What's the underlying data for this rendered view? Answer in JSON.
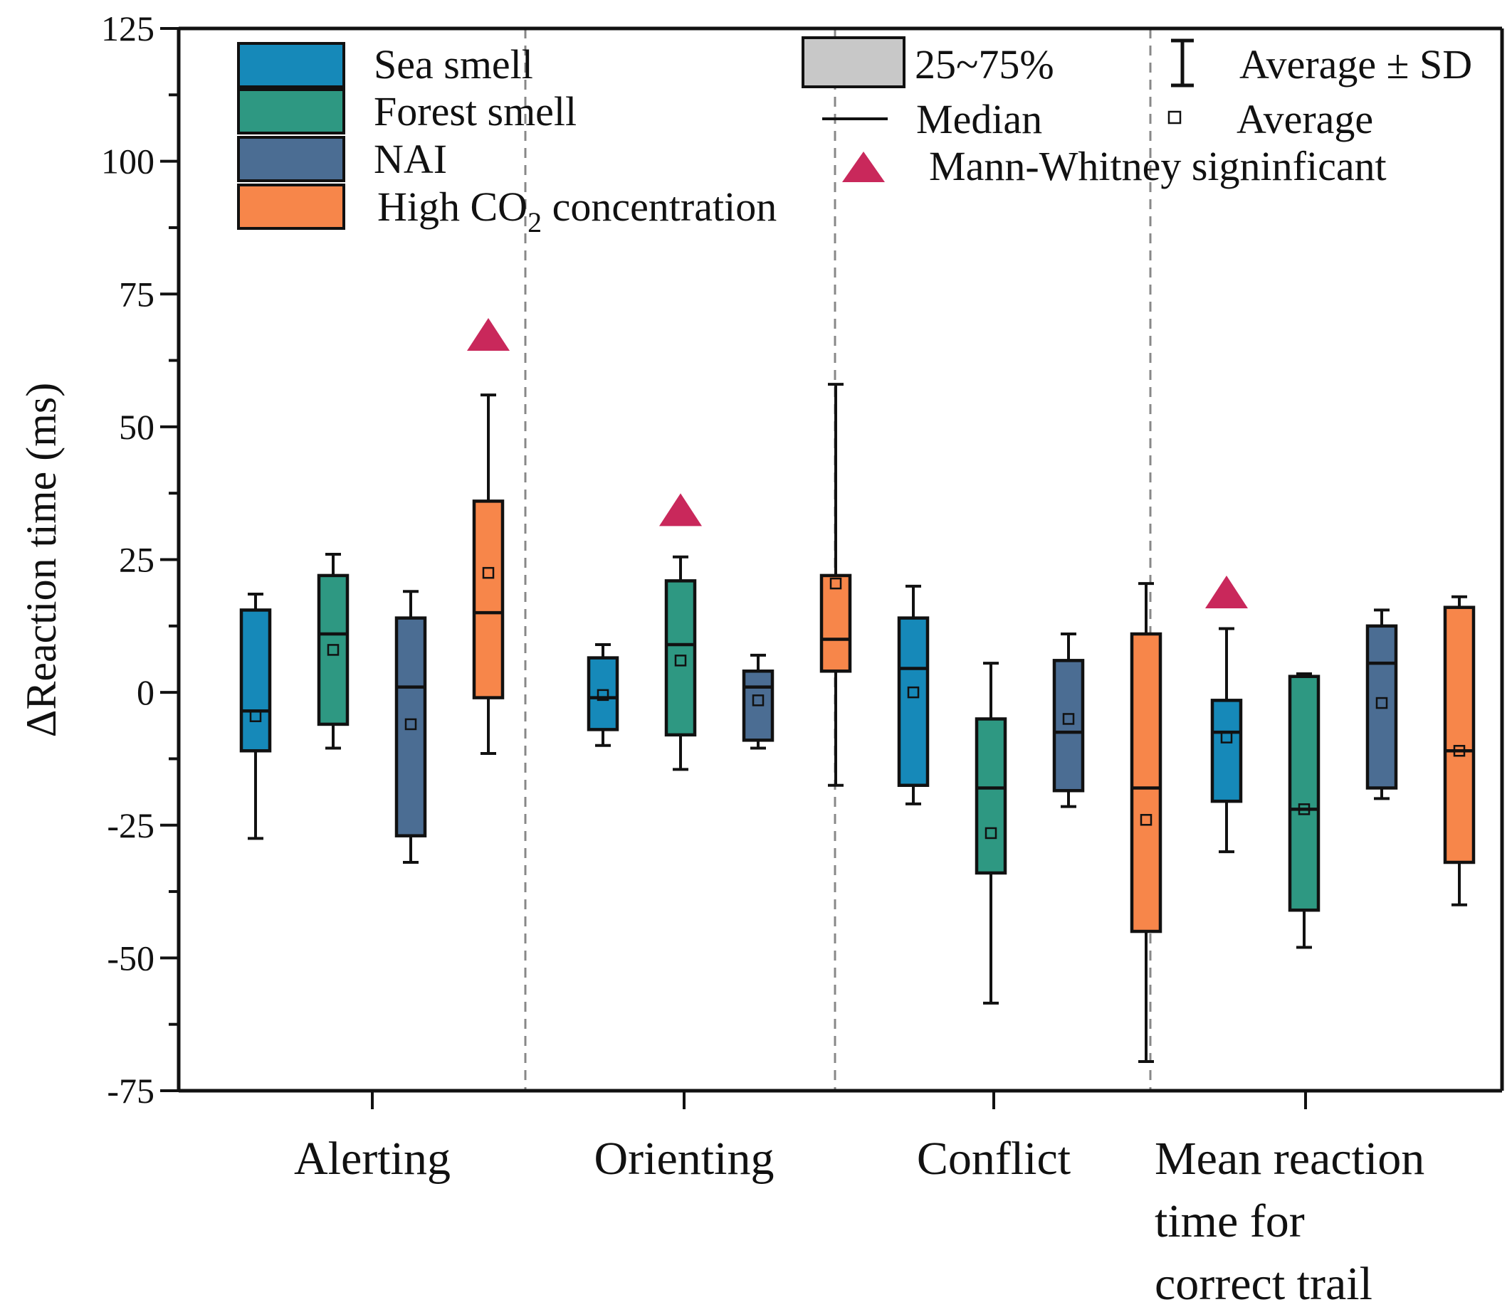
{
  "colors": {
    "sea": "#1689b9",
    "forest": "#2e9882",
    "nai": "#4b6d93",
    "co2": "#f7864a",
    "significant": "#c9285b",
    "iqr_swatch": "#c8c8c8"
  },
  "chart_data": {
    "type": "box",
    "ylabel": "ΔReaction time (ms)",
    "ylim": [
      -75,
      125
    ],
    "yticks": [
      -75,
      -50,
      -25,
      0,
      25,
      50,
      75,
      100,
      125
    ],
    "categories": [
      {
        "label_lines": [
          "Alerting"
        ]
      },
      {
        "label_lines": [
          "Orienting"
        ]
      },
      {
        "label_lines": [
          "Conflict"
        ]
      },
      {
        "label_lines": [
          "Mean reaction",
          "time for",
          "correct trail"
        ]
      }
    ],
    "series": [
      {
        "name": "Sea smell",
        "color_key": "sea",
        "boxes": [
          {
            "whisker_low": -27.5,
            "q1": -11,
            "median": -3.5,
            "q3": 15.5,
            "whisker_high": 18.5,
            "mean": -4.5
          },
          {
            "whisker_low": -10,
            "q1": -7,
            "median": -1,
            "q3": 6.5,
            "whisker_high": 9,
            "mean": -0.5
          },
          {
            "whisker_low": -21,
            "q1": -17.5,
            "median": 4.5,
            "q3": 14,
            "whisker_high": 20,
            "mean": 0
          },
          {
            "whisker_low": -30,
            "q1": -20.5,
            "median": -7.5,
            "q3": -1.5,
            "whisker_high": 12,
            "mean": -8.5
          }
        ]
      },
      {
        "name": "Forest smell",
        "color_key": "forest",
        "boxes": [
          {
            "whisker_low": -10.5,
            "q1": -6,
            "median": 11,
            "q3": 22,
            "whisker_high": 26,
            "mean": 8
          },
          {
            "whisker_low": -14.5,
            "q1": -8,
            "median": 9,
            "q3": 21,
            "whisker_high": 25.5,
            "mean": 6
          },
          {
            "whisker_low": -58.5,
            "q1": -34,
            "median": -18,
            "q3": -5,
            "whisker_high": 5.5,
            "mean": -26.5
          },
          {
            "whisker_low": -48,
            "q1": -41,
            "median": -22,
            "q3": 3,
            "whisker_high": 3.5,
            "mean": -22
          }
        ]
      },
      {
        "name": "NAI",
        "color_key": "nai",
        "boxes": [
          {
            "whisker_low": -32,
            "q1": -27,
            "median": 1,
            "q3": 14,
            "whisker_high": 19,
            "mean": -6
          },
          {
            "whisker_low": -10.5,
            "q1": -9,
            "median": 1,
            "q3": 4,
            "whisker_high": 7,
            "mean": -1.5
          },
          {
            "whisker_low": -21.5,
            "q1": -18.5,
            "median": -7.5,
            "q3": 6,
            "whisker_high": 11,
            "mean": -5
          },
          {
            "whisker_low": -20,
            "q1": -18,
            "median": 5.5,
            "q3": 12.5,
            "whisker_high": 15.5,
            "mean": -2
          }
        ]
      },
      {
        "name": "High CO2 concentration",
        "color_key": "co2",
        "boxes": [
          {
            "whisker_low": -11.5,
            "q1": -1,
            "median": 15,
            "q3": 36,
            "whisker_high": 56,
            "mean": 22.5
          },
          {
            "whisker_low": -17.5,
            "q1": 4,
            "median": 10,
            "q3": 22,
            "whisker_high": 58,
            "mean": 20.5
          },
          {
            "whisker_low": -69.5,
            "q1": -45,
            "median": -18,
            "q3": 11,
            "whisker_high": 20.5,
            "mean": -24
          },
          {
            "whisker_low": -40,
            "q1": -32,
            "median": -11,
            "q3": 16,
            "whisker_high": 18,
            "mean": -11
          }
        ]
      }
    ],
    "significance_markers": [
      {
        "category_index": 0,
        "series_index": 3,
        "y": 67
      },
      {
        "category_index": 1,
        "series_index": 1,
        "y": 34
      },
      {
        "category_index": 3,
        "series_index": 0,
        "y": 18.5
      }
    ],
    "legend": {
      "series": [
        {
          "label": "Sea smell",
          "color_key": "sea"
        },
        {
          "label": "Forest smell",
          "color_key": "forest"
        },
        {
          "label": "NAI",
          "color_key": "nai"
        },
        {
          "label_main": "High CO",
          "label_sub": "2",
          "label_tail": " concentration",
          "color_key": "co2"
        }
      ],
      "symbols": {
        "iqr": "25~75%",
        "median": "Median",
        "sd": "Average ± SD",
        "average": "Average",
        "significant": "Mann-Whitney signinficant"
      }
    }
  }
}
